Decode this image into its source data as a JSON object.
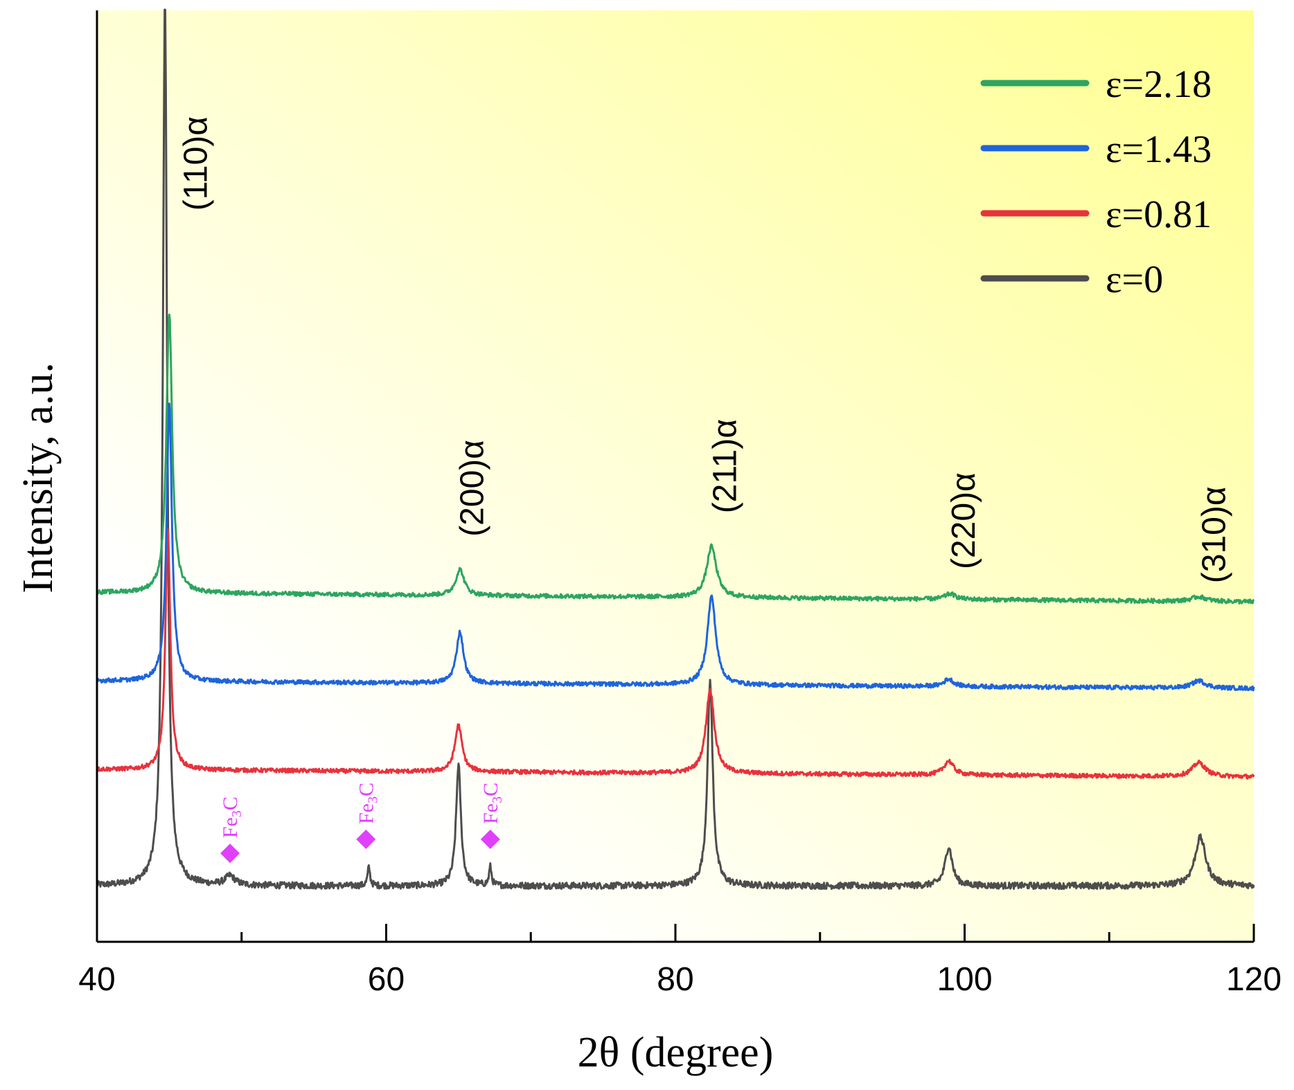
{
  "chart_data": {
    "type": "line",
    "title": "",
    "xlabel": "2θ (degree)",
    "ylabel": "Intensity, a.u.",
    "xlim": [
      40,
      120
    ],
    "ylim": [
      0,
      10
    ],
    "x_ticks": [
      40,
      60,
      80,
      100,
      120
    ],
    "x_minor_ticks": [
      50,
      70,
      90,
      110
    ],
    "y_ticks_shown": false,
    "grid": false,
    "legend_position": "top-right",
    "background_gradient": [
      "#ffffff",
      "#ffff90"
    ],
    "series": [
      {
        "name": "ε=0",
        "color": "#4d4d4d",
        "baseline": 0.6,
        "baseline_slope": 0.0,
        "noise": 0.07,
        "peaks": [
          {
            "x": 44.7,
            "h": 9.5,
            "w": 0.18
          },
          {
            "x": 49.2,
            "h": 0.1,
            "w": 0.4
          },
          {
            "x": 58.8,
            "h": 0.2,
            "w": 0.1
          },
          {
            "x": 65.0,
            "h": 1.3,
            "w": 0.2
          },
          {
            "x": 67.2,
            "h": 0.2,
            "w": 0.1
          },
          {
            "x": 82.4,
            "h": 2.2,
            "w": 0.22
          },
          {
            "x": 98.9,
            "h": 0.42,
            "w": 0.3
          },
          {
            "x": 116.3,
            "h": 0.52,
            "w": 0.45
          }
        ]
      },
      {
        "name": "ε=0.81",
        "color": "#e8323c",
        "baseline": 1.85,
        "baseline_slope": -0.08,
        "noise": 0.045,
        "peaks": [
          {
            "x": 44.9,
            "h": 2.6,
            "w": 0.2
          },
          {
            "x": 65.0,
            "h": 0.5,
            "w": 0.3
          },
          {
            "x": 82.4,
            "h": 0.9,
            "w": 0.35
          },
          {
            "x": 98.9,
            "h": 0.15,
            "w": 0.4
          },
          {
            "x": 116.2,
            "h": 0.15,
            "w": 0.55
          }
        ]
      },
      {
        "name": "ε=1.43",
        "color": "#1e64dc",
        "baseline": 2.8,
        "baseline_slope": -0.08,
        "noise": 0.045,
        "peaks": [
          {
            "x": 45.0,
            "h": 3.0,
            "w": 0.22
          },
          {
            "x": 65.1,
            "h": 0.55,
            "w": 0.3
          },
          {
            "x": 82.5,
            "h": 0.95,
            "w": 0.35
          },
          {
            "x": 98.9,
            "h": 0.08,
            "w": 0.4
          },
          {
            "x": 116.2,
            "h": 0.08,
            "w": 0.55
          }
        ]
      },
      {
        "name": "ε=2.18",
        "color": "#2da560",
        "baseline": 3.75,
        "baseline_slope": -0.1,
        "noise": 0.045,
        "peaks": [
          {
            "x": 45.0,
            "h": 3.0,
            "w": 0.24
          },
          {
            "x": 65.1,
            "h": 0.28,
            "w": 0.35
          },
          {
            "x": 82.5,
            "h": 0.55,
            "w": 0.4
          },
          {
            "x": 99.0,
            "h": 0.06,
            "w": 0.45
          },
          {
            "x": 116.2,
            "h": 0.05,
            "w": 0.6
          }
        ]
      }
    ],
    "peak_labels": [
      {
        "text": "(110)α",
        "x": 47.6,
        "y": 7.85
      },
      {
        "text": "(200)α",
        "x": 66.7,
        "y": 4.35
      },
      {
        "text": "(211)α",
        "x": 84.2,
        "y": 4.6
      },
      {
        "text": "(220)α",
        "x": 100.7,
        "y": 4.0
      },
      {
        "text": "(310)α",
        "x": 118.0,
        "y": 3.85
      }
    ],
    "annotations": [
      {
        "text": "Fe",
        "sub": "3",
        "suffix": "C",
        "x": 49.2,
        "y": 0.95,
        "color": "#e040fb"
      },
      {
        "text": "Fe",
        "sub": "3",
        "suffix": "C",
        "x": 58.6,
        "y": 1.1,
        "color": "#e040fb"
      },
      {
        "text": "Fe",
        "sub": "3",
        "suffix": "C",
        "x": 67.2,
        "y": 1.1,
        "color": "#e040fb"
      }
    ]
  }
}
